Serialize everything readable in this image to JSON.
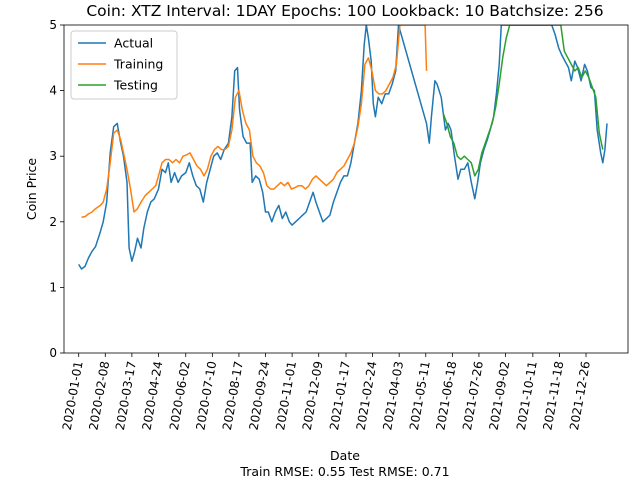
{
  "chart_data": {
    "type": "line",
    "title": "Coin: XTZ Interval: 1DAY Epochs: 100 Lookback: 10 Batchsize: 256",
    "xlabel": "Date",
    "ylabel": "Coin Price",
    "footer": "Train RMSE: 0.55 Test RMSE: 0.71",
    "legend_position": "top-left",
    "grid": false,
    "ylim": [
      0,
      5
    ],
    "xlim": [
      "2019-12-11",
      "2022-02-24"
    ],
    "y_ticks": [
      "0",
      "1",
      "2",
      "3",
      "4",
      "5"
    ],
    "x_ticks": [
      "2020-01-01",
      "2020-02-08",
      "2020-03-17",
      "2020-04-24",
      "2020-06-02",
      "2020-07-10",
      "2020-08-17",
      "2020-09-24",
      "2020-11-01",
      "2020-12-09",
      "2021-01-17",
      "2021-02-24",
      "2021-04-03",
      "2021-05-11",
      "2021-06-18",
      "2021-07-26",
      "2021-09-02",
      "2021-10-11",
      "2021-11-18",
      "2021-12-26"
    ],
    "series": [
      {
        "name": "Actual",
        "color": "#1f77b4",
        "points": [
          [
            "2020-01-01",
            1.35
          ],
          [
            "2020-01-05",
            1.28
          ],
          [
            "2020-01-10",
            1.32
          ],
          [
            "2020-01-15",
            1.45
          ],
          [
            "2020-01-20",
            1.55
          ],
          [
            "2020-01-25",
            1.62
          ],
          [
            "2020-02-01",
            1.85
          ],
          [
            "2020-02-05",
            2.0
          ],
          [
            "2020-02-10",
            2.3
          ],
          [
            "2020-02-15",
            3.05
          ],
          [
            "2020-02-20",
            3.45
          ],
          [
            "2020-02-25",
            3.5
          ],
          [
            "2020-03-01",
            3.2
          ],
          [
            "2020-03-05",
            3.0
          ],
          [
            "2020-03-10",
            2.6
          ],
          [
            "2020-03-13",
            1.6
          ],
          [
            "2020-03-17",
            1.4
          ],
          [
            "2020-03-21",
            1.55
          ],
          [
            "2020-03-25",
            1.75
          ],
          [
            "2020-03-30",
            1.6
          ],
          [
            "2020-04-03",
            1.9
          ],
          [
            "2020-04-08",
            2.15
          ],
          [
            "2020-04-13",
            2.3
          ],
          [
            "2020-04-18",
            2.35
          ],
          [
            "2020-04-24",
            2.5
          ],
          [
            "2020-04-29",
            2.8
          ],
          [
            "2020-05-04",
            2.75
          ],
          [
            "2020-05-08",
            2.9
          ],
          [
            "2020-05-12",
            2.6
          ],
          [
            "2020-05-17",
            2.75
          ],
          [
            "2020-05-22",
            2.6
          ],
          [
            "2020-05-27",
            2.7
          ],
          [
            "2020-06-02",
            2.75
          ],
          [
            "2020-06-07",
            2.9
          ],
          [
            "2020-06-12",
            2.7
          ],
          [
            "2020-06-17",
            2.55
          ],
          [
            "2020-06-22",
            2.5
          ],
          [
            "2020-06-27",
            2.3
          ],
          [
            "2020-07-02",
            2.6
          ],
          [
            "2020-07-07",
            2.8
          ],
          [
            "2020-07-12",
            3.0
          ],
          [
            "2020-07-17",
            3.05
          ],
          [
            "2020-07-22",
            2.95
          ],
          [
            "2020-07-27",
            3.1
          ],
          [
            "2020-08-02",
            3.2
          ],
          [
            "2020-08-07",
            3.6
          ],
          [
            "2020-08-11",
            4.3
          ],
          [
            "2020-08-15",
            4.35
          ],
          [
            "2020-08-18",
            3.7
          ],
          [
            "2020-08-23",
            3.3
          ],
          [
            "2020-08-28",
            3.2
          ],
          [
            "2020-09-02",
            3.2
          ],
          [
            "2020-09-05",
            2.6
          ],
          [
            "2020-09-10",
            2.7
          ],
          [
            "2020-09-15",
            2.65
          ],
          [
            "2020-09-20",
            2.45
          ],
          [
            "2020-09-24",
            2.15
          ],
          [
            "2020-09-28",
            2.15
          ],
          [
            "2020-10-03",
            2.0
          ],
          [
            "2020-10-08",
            2.15
          ],
          [
            "2020-10-13",
            2.25
          ],
          [
            "2020-10-18",
            2.05
          ],
          [
            "2020-10-23",
            2.15
          ],
          [
            "2020-10-28",
            2.0
          ],
          [
            "2020-11-01",
            1.95
          ],
          [
            "2020-11-06",
            2.0
          ],
          [
            "2020-11-11",
            2.05
          ],
          [
            "2020-11-16",
            2.1
          ],
          [
            "2020-11-21",
            2.15
          ],
          [
            "2020-11-26",
            2.3
          ],
          [
            "2020-12-01",
            2.45
          ],
          [
            "2020-12-05",
            2.3
          ],
          [
            "2020-12-10",
            2.15
          ],
          [
            "2020-12-15",
            2.0
          ],
          [
            "2020-12-20",
            2.05
          ],
          [
            "2020-12-25",
            2.1
          ],
          [
            "2020-12-30",
            2.3
          ],
          [
            "2021-01-04",
            2.45
          ],
          [
            "2021-01-09",
            2.6
          ],
          [
            "2021-01-14",
            2.7
          ],
          [
            "2021-01-19",
            2.7
          ],
          [
            "2021-01-24",
            2.9
          ],
          [
            "2021-01-29",
            3.2
          ],
          [
            "2021-02-03",
            3.5
          ],
          [
            "2021-02-08",
            4.0
          ],
          [
            "2021-02-12",
            4.7
          ],
          [
            "2021-02-15",
            5.0
          ],
          [
            "2021-02-18",
            4.8
          ],
          [
            "2021-02-22",
            4.45
          ],
          [
            "2021-02-25",
            3.8
          ],
          [
            "2021-02-28",
            3.6
          ],
          [
            "2021-03-04",
            3.9
          ],
          [
            "2021-03-09",
            3.8
          ],
          [
            "2021-03-14",
            3.95
          ],
          [
            "2021-03-19",
            3.95
          ],
          [
            "2021-03-24",
            4.1
          ],
          [
            "2021-03-29",
            4.3
          ],
          [
            "2021-04-02",
            5.0
          ],
          [
            "2021-05-12",
            3.5
          ],
          [
            "2021-05-16",
            3.2
          ],
          [
            "2021-05-19",
            3.6
          ],
          [
            "2021-05-24",
            4.15
          ],
          [
            "2021-05-27",
            4.1
          ],
          [
            "2021-06-02",
            3.9
          ],
          [
            "2021-06-08",
            3.4
          ],
          [
            "2021-06-12",
            3.5
          ],
          [
            "2021-06-16",
            3.4
          ],
          [
            "2021-06-21",
            3.0
          ],
          [
            "2021-06-26",
            2.65
          ],
          [
            "2021-06-30",
            2.8
          ],
          [
            "2021-07-05",
            2.8
          ],
          [
            "2021-07-10",
            2.9
          ],
          [
            "2021-07-15",
            2.6
          ],
          [
            "2021-07-20",
            2.35
          ],
          [
            "2021-07-24",
            2.6
          ],
          [
            "2021-07-28",
            2.9
          ],
          [
            "2021-08-02",
            3.1
          ],
          [
            "2021-08-07",
            3.25
          ],
          [
            "2021-08-11",
            3.4
          ],
          [
            "2021-08-16",
            3.6
          ],
          [
            "2021-08-20",
            3.95
          ],
          [
            "2021-08-24",
            4.4
          ],
          [
            "2021-08-27",
            5.0
          ],
          [
            "2021-11-07",
            5.0
          ],
          [
            "2021-11-12",
            4.85
          ],
          [
            "2021-11-17",
            4.65
          ],
          [
            "2021-11-21",
            4.55
          ],
          [
            "2021-11-26",
            4.45
          ],
          [
            "2021-12-01",
            4.35
          ],
          [
            "2021-12-05",
            4.15
          ],
          [
            "2021-12-10",
            4.45
          ],
          [
            "2021-12-14",
            4.35
          ],
          [
            "2021-12-19",
            4.15
          ],
          [
            "2021-12-24",
            4.4
          ],
          [
            "2021-12-28",
            4.3
          ],
          [
            "2022-01-02",
            4.05
          ],
          [
            "2022-01-07",
            4.0
          ],
          [
            "2022-01-11",
            3.4
          ],
          [
            "2022-01-16",
            3.05
          ],
          [
            "2022-01-19",
            2.9
          ],
          [
            "2022-01-22",
            3.1
          ],
          [
            "2022-01-25",
            3.5
          ]
        ]
      },
      {
        "name": "Training",
        "color": "#ff7f0e",
        "points": [
          [
            "2020-01-05",
            2.07
          ],
          [
            "2020-01-10",
            2.08
          ],
          [
            "2020-01-15",
            2.12
          ],
          [
            "2020-01-20",
            2.15
          ],
          [
            "2020-01-25",
            2.2
          ],
          [
            "2020-02-01",
            2.25
          ],
          [
            "2020-02-05",
            2.3
          ],
          [
            "2020-02-10",
            2.5
          ],
          [
            "2020-02-15",
            2.9
          ],
          [
            "2020-02-20",
            3.35
          ],
          [
            "2020-02-25",
            3.4
          ],
          [
            "2020-03-01",
            3.25
          ],
          [
            "2020-03-05",
            3.05
          ],
          [
            "2020-03-10",
            2.8
          ],
          [
            "2020-03-15",
            2.5
          ],
          [
            "2020-03-20",
            2.15
          ],
          [
            "2020-03-25",
            2.2
          ],
          [
            "2020-03-30",
            2.3
          ],
          [
            "2020-04-05",
            2.4
          ],
          [
            "2020-04-10",
            2.45
          ],
          [
            "2020-04-15",
            2.5
          ],
          [
            "2020-04-20",
            2.55
          ],
          [
            "2020-04-24",
            2.7
          ],
          [
            "2020-04-29",
            2.9
          ],
          [
            "2020-05-04",
            2.95
          ],
          [
            "2020-05-09",
            2.95
          ],
          [
            "2020-05-14",
            2.9
          ],
          [
            "2020-05-19",
            2.95
          ],
          [
            "2020-05-24",
            2.9
          ],
          [
            "2020-05-29",
            3.0
          ],
          [
            "2020-06-03",
            3.02
          ],
          [
            "2020-06-08",
            3.05
          ],
          [
            "2020-06-13",
            2.95
          ],
          [
            "2020-06-18",
            2.85
          ],
          [
            "2020-06-23",
            2.8
          ],
          [
            "2020-06-28",
            2.7
          ],
          [
            "2020-07-03",
            2.8
          ],
          [
            "2020-07-08",
            3.0
          ],
          [
            "2020-07-13",
            3.1
          ],
          [
            "2020-07-18",
            3.15
          ],
          [
            "2020-07-23",
            3.1
          ],
          [
            "2020-07-28",
            3.1
          ],
          [
            "2020-08-02",
            3.15
          ],
          [
            "2020-08-07",
            3.4
          ],
          [
            "2020-08-12",
            3.9
          ],
          [
            "2020-08-17",
            4.0
          ],
          [
            "2020-08-22",
            3.7
          ],
          [
            "2020-08-27",
            3.5
          ],
          [
            "2020-09-01",
            3.4
          ],
          [
            "2020-09-06",
            3.0
          ],
          [
            "2020-09-11",
            2.9
          ],
          [
            "2020-09-16",
            2.85
          ],
          [
            "2020-09-21",
            2.75
          ],
          [
            "2020-09-26",
            2.55
          ],
          [
            "2020-10-01",
            2.5
          ],
          [
            "2020-10-06",
            2.5
          ],
          [
            "2020-10-11",
            2.55
          ],
          [
            "2020-10-16",
            2.6
          ],
          [
            "2020-10-21",
            2.55
          ],
          [
            "2020-10-26",
            2.6
          ],
          [
            "2020-10-31",
            2.5
          ],
          [
            "2020-11-05",
            2.52
          ],
          [
            "2020-11-10",
            2.55
          ],
          [
            "2020-11-15",
            2.55
          ],
          [
            "2020-11-20",
            2.5
          ],
          [
            "2020-11-25",
            2.55
          ],
          [
            "2020-11-30",
            2.65
          ],
          [
            "2020-12-05",
            2.7
          ],
          [
            "2020-12-10",
            2.65
          ],
          [
            "2020-12-15",
            2.6
          ],
          [
            "2020-12-20",
            2.55
          ],
          [
            "2020-12-25",
            2.6
          ],
          [
            "2020-12-30",
            2.65
          ],
          [
            "2021-01-04",
            2.75
          ],
          [
            "2021-01-09",
            2.8
          ],
          [
            "2021-01-14",
            2.85
          ],
          [
            "2021-01-19",
            2.95
          ],
          [
            "2021-01-24",
            3.05
          ],
          [
            "2021-01-29",
            3.2
          ],
          [
            "2021-02-03",
            3.45
          ],
          [
            "2021-02-08",
            3.8
          ],
          [
            "2021-02-13",
            4.4
          ],
          [
            "2021-02-18",
            4.5
          ],
          [
            "2021-02-23",
            4.3
          ],
          [
            "2021-02-28",
            4.0
          ],
          [
            "2021-03-05",
            3.95
          ],
          [
            "2021-03-10",
            3.95
          ],
          [
            "2021-03-15",
            4.0
          ],
          [
            "2021-03-20",
            4.1
          ],
          [
            "2021-03-25",
            4.2
          ],
          [
            "2021-03-30",
            4.4
          ],
          [
            "2021-04-04",
            5.0
          ],
          [
            "2021-05-10",
            5.0
          ],
          [
            "2021-05-12",
            4.3
          ]
        ]
      },
      {
        "name": "Testing",
        "color": "#2ca02c",
        "points": [
          [
            "2021-06-05",
            3.65
          ],
          [
            "2021-06-10",
            3.5
          ],
          [
            "2021-06-15",
            3.3
          ],
          [
            "2021-06-20",
            3.2
          ],
          [
            "2021-06-25",
            3.0
          ],
          [
            "2021-06-30",
            2.95
          ],
          [
            "2021-07-05",
            3.0
          ],
          [
            "2021-07-10",
            2.95
          ],
          [
            "2021-07-15",
            2.9
          ],
          [
            "2021-07-20",
            2.7
          ],
          [
            "2021-07-25",
            2.8
          ],
          [
            "2021-07-30",
            3.05
          ],
          [
            "2021-08-04",
            3.2
          ],
          [
            "2021-08-09",
            3.35
          ],
          [
            "2021-08-14",
            3.5
          ],
          [
            "2021-08-19",
            3.75
          ],
          [
            "2021-08-24",
            4.1
          ],
          [
            "2021-08-29",
            4.5
          ],
          [
            "2021-09-03",
            4.8
          ],
          [
            "2021-09-08",
            5.0
          ],
          [
            "2021-11-20",
            5.0
          ],
          [
            "2021-11-25",
            4.6
          ],
          [
            "2021-11-30",
            4.5
          ],
          [
            "2021-12-05",
            4.4
          ],
          [
            "2021-12-10",
            4.3
          ],
          [
            "2021-12-15",
            4.35
          ],
          [
            "2021-12-20",
            4.2
          ],
          [
            "2021-12-25",
            4.3
          ],
          [
            "2021-12-30",
            4.2
          ],
          [
            "2022-01-04",
            4.05
          ],
          [
            "2022-01-09",
            3.9
          ],
          [
            "2022-01-14",
            3.35
          ],
          [
            "2022-01-19",
            3.1
          ]
        ]
      }
    ]
  }
}
